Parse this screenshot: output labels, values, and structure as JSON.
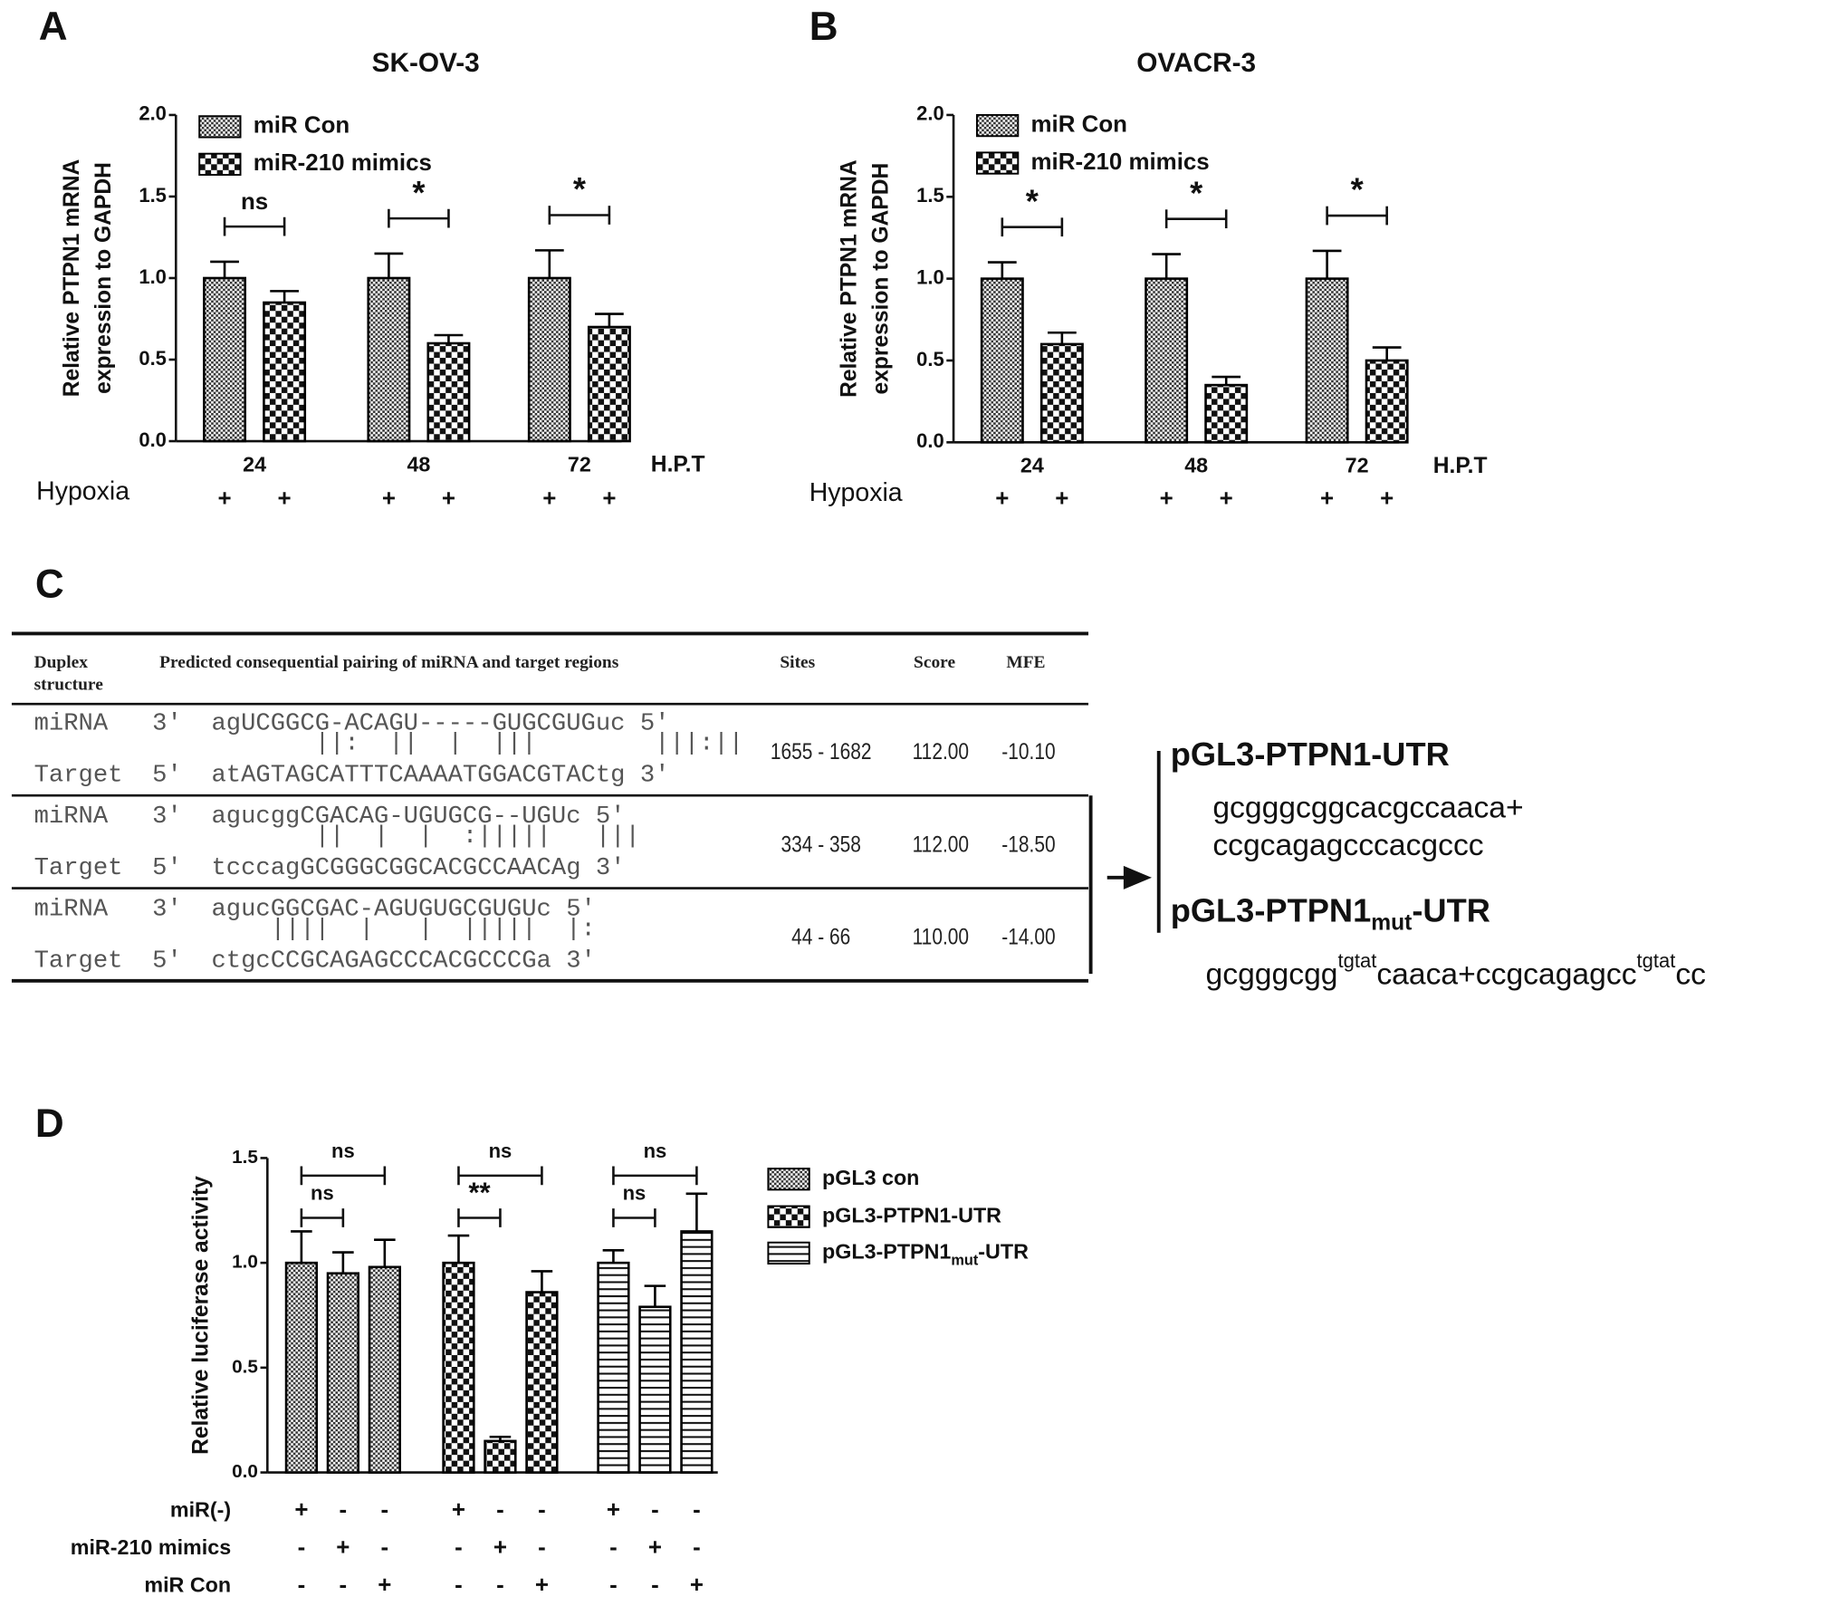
{
  "panels": {
    "a": "A",
    "b": "B",
    "c": "C",
    "d": "D"
  },
  "chart_data": [
    {
      "type": "bar",
      "title": "SK-OV-3",
      "ylabel": [
        "Relative PTPN1 mRNA",
        "expression to GAPDH"
      ],
      "xlabel": "H.P.T",
      "categories": [
        "24",
        "48",
        "72"
      ],
      "ylim": [
        0,
        2
      ],
      "yticks": [
        {
          "value": 0,
          "label": "0.0"
        },
        {
          "value": 0.5,
          "label": "0.5"
        },
        {
          "value": 1,
          "label": "1.0"
        },
        {
          "value": 1.5,
          "label": "1.5"
        },
        {
          "value": 2,
          "label": "2.0"
        }
      ],
      "series": [
        {
          "name": "miR Con",
          "pattern": "fine",
          "color": "#000000",
          "values": [
            1.0,
            1.0,
            1.0
          ],
          "errors": [
            0.1,
            0.15,
            0.17
          ]
        },
        {
          "name": "miR-210 mimics",
          "pattern": "coarse",
          "color": "#000000",
          "values": [
            0.85,
            0.6,
            0.7
          ],
          "errors": [
            0.07,
            0.05,
            0.08
          ]
        }
      ],
      "significance": [
        "ns",
        "*",
        "*"
      ],
      "conditions": [
        {
          "label": "Hypoxia",
          "marks": [
            "+",
            "+",
            "+",
            "+",
            "+",
            "+"
          ]
        }
      ]
    },
    {
      "type": "bar",
      "title": "OVACR-3",
      "ylabel": [
        "Relative PTPN1 mRNA",
        "expression to GAPDH"
      ],
      "xlabel": "H.P.T",
      "categories": [
        "24",
        "48",
        "72"
      ],
      "ylim": [
        0,
        2
      ],
      "yticks": [
        {
          "value": 0,
          "label": "0.0"
        },
        {
          "value": 0.5,
          "label": "0.5"
        },
        {
          "value": 1,
          "label": "1.0"
        },
        {
          "value": 1.5,
          "label": "1.5"
        },
        {
          "value": 2,
          "label": "2.0"
        }
      ],
      "series": [
        {
          "name": "miR Con",
          "pattern": "fine",
          "color": "#000000",
          "values": [
            1.0,
            1.0,
            1.0
          ],
          "errors": [
            0.1,
            0.15,
            0.17
          ]
        },
        {
          "name": "miR-210 mimics",
          "pattern": "coarse",
          "color": "#000000",
          "values": [
            0.6,
            0.35,
            0.5
          ],
          "errors": [
            0.07,
            0.05,
            0.08
          ]
        }
      ],
      "significance": [
        "*",
        "*",
        "*"
      ],
      "conditions": [
        {
          "label": "Hypoxia",
          "marks": [
            "+",
            "+",
            "+",
            "+",
            "+",
            "+"
          ]
        }
      ]
    },
    {
      "type": "bar",
      "ylabel": [
        "Relative luciferase activity"
      ],
      "ylim": [
        0,
        1.5
      ],
      "yticks": [
        {
          "value": 0,
          "label": "0.0"
        },
        {
          "value": 0.5,
          "label": "0.5"
        },
        {
          "value": 1,
          "label": "1.0"
        },
        {
          "value": 1.5,
          "label": "1.5"
        }
      ],
      "series": [
        {
          "name": "pGL3 con",
          "pattern": "fine",
          "color": "#000000",
          "values": [
            1.0,
            0.95,
            0.98
          ],
          "errors": [
            0.15,
            0.1,
            0.13
          ]
        },
        {
          "name": "pGL3-PTPN1-UTR",
          "pattern": "coarse",
          "color": "#000000",
          "values": [
            1.0,
            0.15,
            0.86
          ],
          "errors": [
            0.13,
            0.02,
            0.1
          ]
        },
        {
          "name": [
            "pGL3-PTPN1",
            "mut",
            "-UTR"
          ],
          "pattern": "hlines",
          "color": "#000000",
          "values": [
            1.0,
            0.79,
            1.15
          ],
          "errors": [
            0.06,
            0.1,
            0.18
          ]
        }
      ],
      "significance_outer": [
        "ns",
        "ns",
        "ns"
      ],
      "significance_inner": [
        "ns",
        "**",
        "ns"
      ],
      "conditions": [
        {
          "label": "miR(-)",
          "marks": [
            "+",
            "-",
            "-",
            "+",
            "-",
            "-",
            "+",
            "-",
            "-"
          ]
        },
        {
          "label": "miR-210 mimics",
          "marks": [
            "-",
            "+",
            "-",
            "-",
            "+",
            "-",
            "-",
            "+",
            "-"
          ]
        },
        {
          "label": "miR Con",
          "marks": [
            "-",
            "-",
            "+",
            "-",
            "-",
            "+",
            "-",
            "-",
            "+"
          ]
        }
      ]
    }
  ],
  "table": {
    "headers": [
      "Duplex structure",
      "Predicted consequential pairing of miRNA and target regions",
      "Sites",
      "Score",
      "MFE"
    ],
    "rows": [
      {
        "mirna": "miRNA   3'  agUCGGCG-ACAGU-----GUGCGUGuc 5'",
        "pairing": "                   ||:  ||  |  |||        |||:||",
        "target": "Target  5'  atAGTAGCATTTCAAAATGGACGTACtg 3'",
        "sites": "1655 - 1682",
        "score": "112.00",
        "mfe": "-10.10"
      },
      {
        "mirna": "miRNA   3'  agucggCGACAG-UGUGCG--UGUc 5'",
        "pairing": "                   ||  |  |  :|||||   |||",
        "target": "Target  5'  tcccagGCGGGCGGCACGCCAACAg 3'",
        "sites": "334 - 358",
        "score": "112.00",
        "mfe": "-18.50"
      },
      {
        "mirna": "miRNA   3'  agucGGCGAC-AGUGUGCGUGUc 5'",
        "pairing": "                ||||  |   |  |||||  |:",
        "target": "Target  5'  ctgcCCGCAGAGCCCACGCCCGa 3'",
        "sites": "44 - 66",
        "score": "110.00",
        "mfe": "-14.00"
      }
    ]
  },
  "constructs": {
    "wt_title": "pGL3-PTPN1-UTR",
    "wt_sequence": [
      "gcgggcggcacgccaaca+",
      "ccgcagagcccacgccc"
    ],
    "mut_title": [
      "pGL3-PTPN1",
      "mut",
      "-UTR"
    ],
    "mut_sequence": [
      "gcgggcgg",
      "tgtat",
      "caaca+ccgcagagcc",
      "tgtat",
      "cc"
    ]
  }
}
